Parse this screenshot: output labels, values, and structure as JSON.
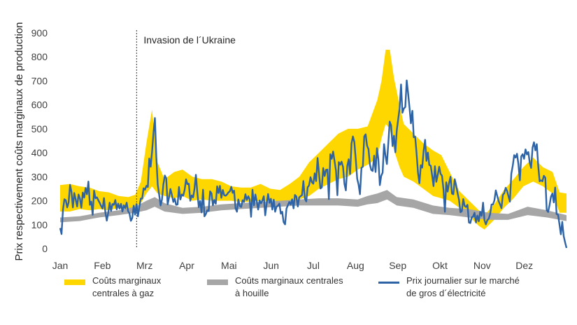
{
  "chart_data": {
    "type": "area",
    "title": "",
    "ylabel": "Prix respectivement coûts marginaux de production",
    "xlabel": "",
    "ylim": [
      0,
      900
    ],
    "yticks": [
      0,
      100,
      200,
      300,
      400,
      500,
      600,
      700,
      800,
      900
    ],
    "months": [
      "Jan",
      "Feb",
      "Mrz",
      "Apr",
      "Mai",
      "Jun",
      "Jul",
      "Aug",
      "Sep",
      "Okt",
      "Nov",
      "Dez"
    ],
    "grid": false,
    "annotation": {
      "label": "Invasion de l´Ukraine",
      "day": 55
    },
    "series": [
      {
        "name": "Coûts marginaux\ncentrales à gaz",
        "kind": "band",
        "color": "#FFD700",
        "points": [
          [
            0,
            155,
            265
          ],
          [
            7,
            155,
            270
          ],
          [
            14,
            165,
            260
          ],
          [
            21,
            160,
            255
          ],
          [
            28,
            165,
            240
          ],
          [
            35,
            160,
            235
          ],
          [
            42,
            170,
            220
          ],
          [
            49,
            160,
            215
          ],
          [
            54,
            175,
            225
          ],
          [
            58,
            190,
            280
          ],
          [
            62,
            230,
            440
          ],
          [
            66,
            260,
            580
          ],
          [
            70,
            230,
            360
          ],
          [
            75,
            220,
            290
          ],
          [
            82,
            210,
            320
          ],
          [
            88,
            220,
            330
          ],
          [
            95,
            200,
            300
          ],
          [
            102,
            205,
            290
          ],
          [
            109,
            200,
            290
          ],
          [
            116,
            200,
            280
          ],
          [
            123,
            200,
            260
          ],
          [
            130,
            195,
            255
          ],
          [
            137,
            195,
            255
          ],
          [
            144,
            200,
            270
          ],
          [
            151,
            195,
            250
          ],
          [
            158,
            190,
            245
          ],
          [
            165,
            200,
            270
          ],
          [
            172,
            205,
            300
          ],
          [
            179,
            220,
            360
          ],
          [
            186,
            250,
            400
          ],
          [
            193,
            270,
            440
          ],
          [
            200,
            290,
            480
          ],
          [
            207,
            300,
            500
          ],
          [
            214,
            330,
            500
          ],
          [
            221,
            350,
            510
          ],
          [
            228,
            380,
            620
          ],
          [
            231,
            460,
            700
          ],
          [
            234,
            520,
            830
          ],
          [
            237,
            500,
            830
          ],
          [
            240,
            410,
            710
          ],
          [
            244,
            340,
            600
          ],
          [
            247,
            300,
            520
          ],
          [
            254,
            280,
            480
          ],
          [
            261,
            250,
            440
          ],
          [
            268,
            220,
            410
          ],
          [
            274,
            210,
            390
          ],
          [
            280,
            200,
            320
          ],
          [
            287,
            170,
            240
          ],
          [
            294,
            135,
            200
          ],
          [
            301,
            95,
            160
          ],
          [
            305,
            80,
            140
          ],
          [
            312,
            120,
            185
          ],
          [
            319,
            170,
            245
          ],
          [
            326,
            210,
            290
          ],
          [
            333,
            260,
            340
          ],
          [
            340,
            280,
            380
          ],
          [
            347,
            260,
            340
          ],
          [
            354,
            230,
            320
          ],
          [
            359,
            150,
            235
          ],
          [
            364,
            150,
            230
          ]
        ]
      },
      {
        "name": "Coûts marginaux centrales\nà houille",
        "kind": "band",
        "color": "#A6A6A6",
        "points": [
          [
            0,
            110,
            130
          ],
          [
            14,
            115,
            135
          ],
          [
            28,
            130,
            150
          ],
          [
            42,
            140,
            160
          ],
          [
            54,
            150,
            175
          ],
          [
            62,
            160,
            200
          ],
          [
            68,
            175,
            215
          ],
          [
            75,
            155,
            190
          ],
          [
            88,
            145,
            170
          ],
          [
            102,
            150,
            175
          ],
          [
            116,
            160,
            185
          ],
          [
            130,
            165,
            190
          ],
          [
            144,
            170,
            195
          ],
          [
            158,
            175,
            200
          ],
          [
            172,
            180,
            205
          ],
          [
            186,
            180,
            210
          ],
          [
            200,
            180,
            210
          ],
          [
            214,
            175,
            205
          ],
          [
            221,
            185,
            220
          ],
          [
            228,
            190,
            230
          ],
          [
            235,
            205,
            245
          ],
          [
            242,
            180,
            215
          ],
          [
            254,
            170,
            205
          ],
          [
            268,
            145,
            180
          ],
          [
            280,
            140,
            170
          ],
          [
            294,
            130,
            165
          ],
          [
            308,
            120,
            150
          ],
          [
            322,
            120,
            145
          ],
          [
            336,
            140,
            175
          ],
          [
            350,
            130,
            160
          ],
          [
            364,
            115,
            140
          ]
        ]
      },
      {
        "name": "Prix journalier sur le marché\nde gros d´électricité",
        "kind": "line",
        "color": "#2E64A6",
        "values": [
          86,
          61,
          161,
          206,
          202,
          172,
          192,
          266,
          237,
          172,
          232,
          206,
          176,
          226,
          209,
          171,
          234,
          213,
          253,
          227,
          280,
          183,
          196,
          141,
          242,
          210,
          214,
          202,
          191,
          178,
          167,
          211,
          150,
          117,
          151,
          192,
          157,
          186,
          183,
          203,
          164,
          188,
          167,
          187,
          155,
          181,
          169,
          192,
          157,
          147,
          116,
          128,
          179,
          142,
          186,
          135,
          176,
          209,
          209,
          252,
          246,
          262,
          257,
          376,
          342,
          408,
          485,
          545,
          383,
          268,
          224,
          180,
          205,
          268,
          305,
          293,
          185,
          213,
          249,
          224,
          195,
          209,
          183,
          184,
          257,
          205,
          226,
          221,
          245,
          289,
          269,
          271,
          200,
          222,
          214,
          250,
          308,
          233,
          173,
          199,
          151,
          246,
          135,
          144,
          160,
          157,
          239,
          231,
          181,
          203,
          187,
          260,
          232,
          262,
          212,
          245,
          223,
          221,
          226,
          235,
          239,
          258,
          233,
          242,
          168,
          154,
          205,
          178,
          174,
          202,
          195,
          227,
          203,
          219,
          205,
          133,
          246,
          181,
          226,
          198,
          163,
          201,
          189,
          201,
          219,
          139,
          188,
          228,
          191,
          208,
          163,
          204,
          154,
          175,
          179,
          188,
          146,
          154,
          111,
          101,
          167,
          181,
          195,
          184,
          206,
          168,
          224,
          218,
          176,
          214,
          219,
          223,
          282,
          209,
          197,
          256,
          264,
          298,
          277,
          271,
          314,
          282,
          378,
          315,
          251,
          255,
          336,
          303,
          329,
          330,
          207,
          394,
          375,
          405,
          366,
          326,
          223,
          361,
          350,
          363,
          341,
          270,
          243,
          344,
          373,
          311,
          439,
          468,
          446,
          372,
          292,
          267,
          227,
          337,
          342,
          468,
          477,
          430,
          415,
          351,
          328,
          324,
          388,
          320,
          419,
          373,
          265,
          304,
          317,
          436,
          389,
          353,
          439,
          530,
          514,
          428,
          471,
          402,
          493,
          539,
          586,
          685,
          567,
          584,
          591,
          702,
          649,
          589,
          523,
          575,
          465,
          467,
          398,
          316,
          273,
          348,
          338,
          408,
          454,
          366,
          401,
          349,
          346,
          305,
          261,
          344,
          279,
          309,
          342,
          312,
          304,
          247,
          154,
          277,
          238,
          274,
          300,
          230,
          227,
          290,
          263,
          231,
          204,
          152,
          156,
          207,
          178,
          174,
          183,
          109,
          107,
          131,
          134,
          150,
          109,
          138,
          114,
          154,
          137,
          192,
          119,
          101,
          118,
          125,
          144,
          184,
          184,
          201,
          243,
          221,
          199,
          185,
          169,
          224,
          231,
          254,
          240,
          218,
          196,
          313,
          347,
          390,
          380,
          396,
          354,
          285,
          385,
          394,
          375,
          414,
          393,
          403,
          359,
          337,
          422,
          444,
          410,
          436,
          344,
          281,
          285,
          281,
          304,
          296,
          161,
          153,
          181,
          217,
          230,
          193,
          255,
          144,
          141,
          102,
          60,
          112,
          52,
          26,
          3
        ]
      }
    ]
  }
}
